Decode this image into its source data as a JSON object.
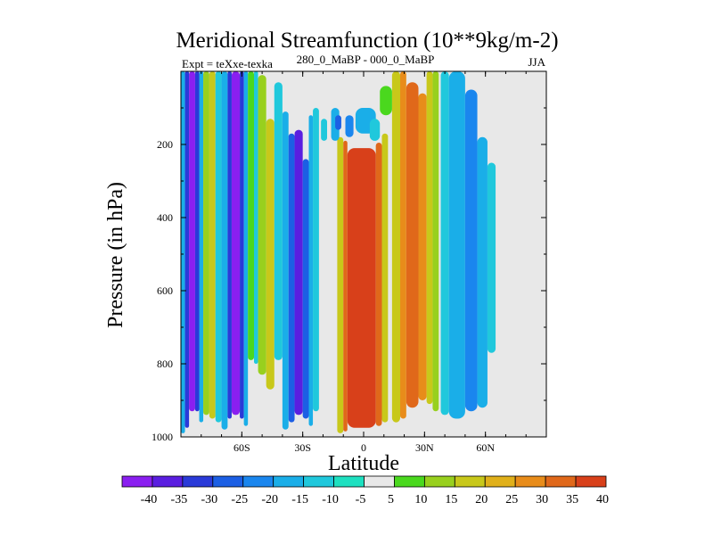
{
  "chart_data": {
    "type": "contour",
    "title": "Meridional Streamfunction (10**9kg/m-2)",
    "left_string": "Expt = teXxe-texka",
    "center_string": "280_0_MaBP - 000_0_MaBP",
    "right_string": "JJA",
    "xlabel": "Latitude",
    "ylabel": "Pressure (in hPa)",
    "xlim": [
      -90,
      90
    ],
    "ylim": [
      1000,
      0
    ],
    "x_ticks": [
      {
        "value": -60,
        "label": "60S"
      },
      {
        "value": -30,
        "label": "30S"
      },
      {
        "value": 0,
        "label": "0"
      },
      {
        "value": 30,
        "label": "30N"
      },
      {
        "value": 60,
        "label": "60N"
      }
    ],
    "y_ticks": [
      {
        "value": 200,
        "label": "200"
      },
      {
        "value": 400,
        "label": "400"
      },
      {
        "value": 600,
        "label": "600"
      },
      {
        "value": 800,
        "label": "800"
      },
      {
        "value": 1000,
        "label": "1000"
      }
    ],
    "colorbar": {
      "labels": [
        "-40",
        "-35",
        "-30",
        "-25",
        "-20",
        "-15",
        "-10",
        "-5",
        "5",
        "10",
        "15",
        "20",
        "25",
        "30",
        "35",
        "40"
      ],
      "colors": [
        "#8a1ff0",
        "#5a1ee0",
        "#2a3ad8",
        "#1c5fe4",
        "#1a86ee",
        "#1aaee8",
        "#20c8dc",
        "#1ee0c0",
        "#e8e8e8",
        "#4ad81e",
        "#98d01e",
        "#c8c81a",
        "#e0b01a",
        "#e88c1a",
        "#e0681a",
        "#d8401a"
      ]
    },
    "cells": [
      {
        "lat": [
          -90,
          -88
        ],
        "plev": [
          0,
          990
        ],
        "value": -10
      },
      {
        "lat": [
          -88,
          -86
        ],
        "plev": [
          0,
          975
        ],
        "value": -25
      },
      {
        "lat": [
          -86,
          -83
        ],
        "plev": [
          0,
          930
        ],
        "value": -35
      },
      {
        "lat": [
          -83,
          -81
        ],
        "plev": [
          0,
          930
        ],
        "value": -25
      },
      {
        "lat": [
          -81,
          -79
        ],
        "plev": [
          0,
          960
        ],
        "value": -10
      },
      {
        "lat": [
          -79,
          -76
        ],
        "plev": [
          0,
          940
        ],
        "value": 10
      },
      {
        "lat": [
          -76,
          -73
        ],
        "plev": [
          0,
          950
        ],
        "value": 15
      },
      {
        "lat": [
          -73,
          -70
        ],
        "plev": [
          0,
          960
        ],
        "value": -5
      },
      {
        "lat": [
          -70,
          -67
        ],
        "plev": [
          0,
          980
        ],
        "value": -10
      },
      {
        "lat": [
          -67,
          -65
        ],
        "plev": [
          0,
          950
        ],
        "value": -25
      },
      {
        "lat": [
          -65,
          -61
        ],
        "plev": [
          0,
          940
        ],
        "value": -35
      },
      {
        "lat": [
          -61,
          -59
        ],
        "plev": [
          0,
          950
        ],
        "value": -25
      },
      {
        "lat": [
          -59,
          -57
        ],
        "plev": [
          0,
          970
        ],
        "value": -10
      },
      {
        "lat": [
          -57,
          -54
        ],
        "plev": [
          0,
          790
        ],
        "value": 5
      },
      {
        "lat": [
          -54,
          -52
        ],
        "plev": [
          0,
          800
        ],
        "value": -5
      },
      {
        "lat": [
          -52,
          -48
        ],
        "plev": [
          10,
          830
        ],
        "value": 10
      },
      {
        "lat": [
          -48,
          -44
        ],
        "plev": [
          130,
          870
        ],
        "value": 15
      },
      {
        "lat": [
          -44,
          -40
        ],
        "plev": [
          30,
          790
        ],
        "value": -5
      },
      {
        "lat": [
          -40,
          -37
        ],
        "plev": [
          110,
          980
        ],
        "value": -10
      },
      {
        "lat": [
          -37,
          -34
        ],
        "plev": [
          170,
          960
        ],
        "value": -20
      },
      {
        "lat": [
          -34,
          -30
        ],
        "plev": [
          160,
          940
        ],
        "value": -30
      },
      {
        "lat": [
          -30,
          -27
        ],
        "plev": [
          240,
          950
        ],
        "value": -20
      },
      {
        "lat": [
          -27,
          -25
        ],
        "plev": [
          120,
          970
        ],
        "value": -10
      },
      {
        "lat": [
          -25,
          -22
        ],
        "plev": [
          100,
          930
        ],
        "value": -5
      },
      {
        "lat": [
          -13,
          -10
        ],
        "plev": [
          180,
          990
        ],
        "value": 15
      },
      {
        "lat": [
          -10,
          -8
        ],
        "plev": [
          190,
          985
        ],
        "value": 30
      },
      {
        "lat": [
          -8,
          6
        ],
        "plev": [
          210,
          975
        ],
        "value": 40
      },
      {
        "lat": [
          6,
          9
        ],
        "plev": [
          195,
          970
        ],
        "value": 30
      },
      {
        "lat": [
          9,
          12
        ],
        "plev": [
          170,
          960
        ],
        "value": 15
      },
      {
        "lat": [
          14,
          18
        ],
        "plev": [
          0,
          960
        ],
        "value": 15
      },
      {
        "lat": [
          18,
          21
        ],
        "plev": [
          0,
          950
        ],
        "value": 25
      },
      {
        "lat": [
          21,
          27
        ],
        "plev": [
          30,
          920
        ],
        "value": 30
      },
      {
        "lat": [
          27,
          31
        ],
        "plev": [
          60,
          900
        ],
        "value": 25
      },
      {
        "lat": [
          31,
          34
        ],
        "plev": [
          0,
          910
        ],
        "value": 15
      },
      {
        "lat": [
          34,
          37
        ],
        "plev": [
          0,
          930
        ],
        "value": 10
      },
      {
        "lat": [
          38,
          42
        ],
        "plev": [
          0,
          940
        ],
        "value": -5
      },
      {
        "lat": [
          42,
          50
        ],
        "plev": [
          0,
          950
        ],
        "value": -10
      },
      {
        "lat": [
          50,
          56
        ],
        "plev": [
          50,
          930
        ],
        "value": -15
      },
      {
        "lat": [
          56,
          61
        ],
        "plev": [
          180,
          920
        ],
        "value": -10
      },
      {
        "lat": [
          61,
          65
        ],
        "plev": [
          250,
          770
        ],
        "value": -5
      },
      {
        "lat": [
          -21,
          -18
        ],
        "plev": [
          130,
          190
        ],
        "value": -5
      },
      {
        "lat": [
          -16,
          -12
        ],
        "plev": [
          100,
          190
        ],
        "value": -10
      },
      {
        "lat": [
          -14,
          -11
        ],
        "plev": [
          120,
          160
        ],
        "value": -20
      },
      {
        "lat": [
          -9,
          -5
        ],
        "plev": [
          120,
          180
        ],
        "value": -15
      },
      {
        "lat": [
          -4,
          6
        ],
        "plev": [
          100,
          170
        ],
        "value": -10
      },
      {
        "lat": [
          3,
          8
        ],
        "plev": [
          130,
          190
        ],
        "value": -5
      },
      {
        "lat": [
          8,
          14
        ],
        "plev": [
          40,
          120
        ],
        "value": 5
      }
    ]
  }
}
